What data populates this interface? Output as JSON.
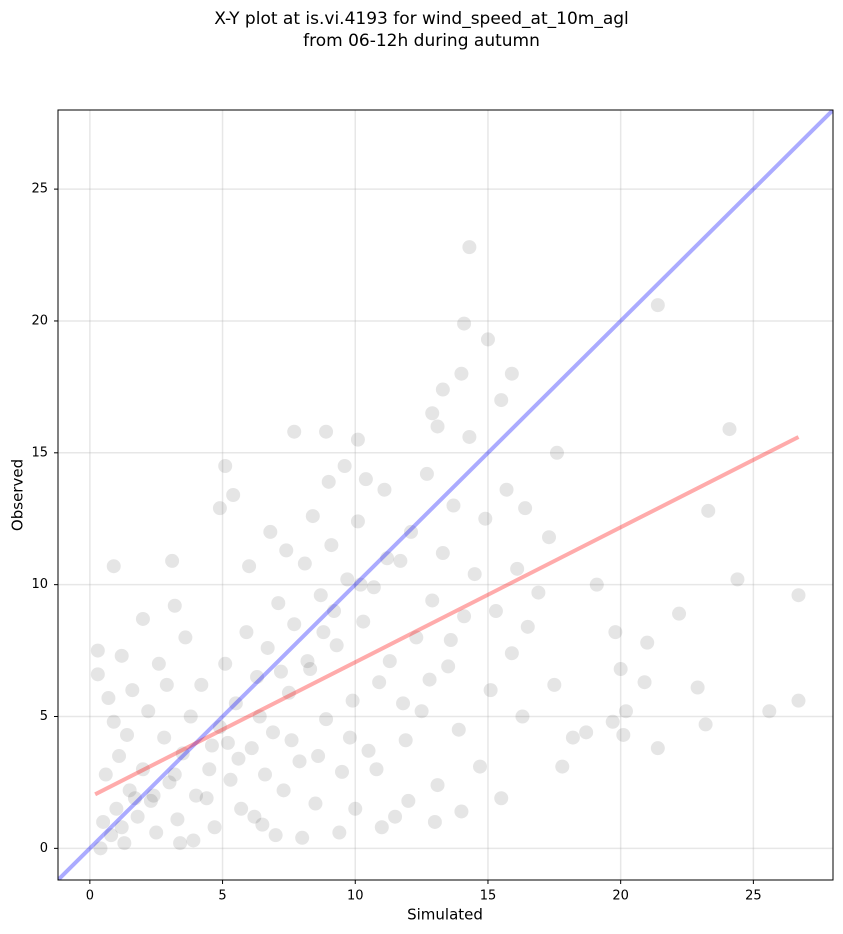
{
  "chart_data": {
    "type": "scatter",
    "title": "X-Y plot at is.vi.4193 for wind_speed_at_10m_agl\nfrom 06-12h during autumn",
    "x_label": "Simulated",
    "y_label": "Observed",
    "xlim": [
      -1.2,
      28
    ],
    "ylim": [
      -1.2,
      28
    ],
    "xticks": [
      0,
      5,
      10,
      15,
      20,
      25
    ],
    "yticks": [
      0,
      5,
      10,
      15,
      20,
      25
    ],
    "grid": true,
    "series": [
      {
        "color": "#000000",
        "x": [
          14.3,
          21.4,
          14.1,
          15.0,
          24.1,
          26.7,
          26.7,
          25.6,
          24.4,
          23.3,
          22.2,
          23.2,
          22.9,
          21.4,
          20.2,
          20.1,
          20.0,
          21.0,
          20.9,
          19.7,
          19.8,
          19.1,
          18.7,
          18.2,
          17.5,
          17.8,
          17.6,
          16.9,
          17.3,
          16.4,
          15.9,
          15.5,
          14.0,
          13.3,
          12.9,
          13.1,
          7.7,
          8.9,
          10.1,
          5.1,
          5.4,
          4.9,
          0.9,
          3.1,
          0.3,
          0.3,
          0.7,
          1.2,
          2.0,
          3.2,
          0.5,
          0.8,
          1.0,
          1.2,
          1.5,
          0.6,
          1.8,
          2.0,
          2.3,
          2.5,
          1.1,
          1.4,
          0.9,
          2.8,
          3.0,
          3.3,
          3.5,
          3.8,
          4.0,
          4.2,
          4.5,
          4.7,
          4.9,
          5.1,
          5.3,
          5.5,
          5.7,
          5.9,
          6.1,
          6.3,
          6.5,
          6.7,
          6.9,
          7.1,
          7.3,
          7.5,
          7.7,
          7.9,
          8.1,
          8.3,
          8.5,
          8.7,
          8.9,
          9.1,
          9.3,
          9.5,
          9.7,
          9.9,
          10.1,
          10.3,
          10.5,
          10.7,
          10.9,
          11.1,
          11.3,
          11.5,
          11.7,
          11.9,
          12.1,
          12.3,
          12.5,
          12.7,
          12.9,
          13.1,
          13.3,
          13.5,
          13.7,
          13.9,
          14.1,
          14.3,
          14.5,
          14.7,
          14.9,
          15.1,
          15.3,
          15.5,
          15.7,
          15.9,
          16.1,
          16.3,
          16.5,
          1.6,
          2.2,
          2.6,
          3.6,
          3.9,
          2.9,
          6.0,
          6.8,
          7.4,
          8.4,
          9.0,
          9.6,
          10.4,
          6.2,
          7.0,
          8.0,
          9.4,
          10.0,
          11.0,
          12.0,
          13.0,
          14.0,
          1.3,
          0.4,
          3.4,
          4.4,
          5.6,
          6.6,
          7.6,
          8.6,
          9.8,
          10.8,
          11.8,
          12.8,
          13.6,
          8.2,
          9.2,
          10.2,
          11.2,
          8.8,
          7.2,
          6.4,
          5.2,
          4.6,
          3.2,
          2.4,
          1.7
        ],
        "y": [
          22.8,
          20.6,
          19.9,
          19.3,
          15.9,
          9.6,
          5.6,
          5.2,
          10.2,
          12.8,
          8.9,
          4.7,
          6.1,
          3.8,
          5.2,
          4.3,
          6.8,
          7.8,
          6.3,
          4.8,
          8.2,
          10.0,
          4.4,
          4.2,
          6.2,
          3.1,
          15.0,
          9.7,
          11.8,
          12.9,
          18.0,
          17.0,
          18.0,
          17.4,
          16.5,
          16.0,
          15.8,
          15.8,
          15.5,
          14.5,
          13.4,
          12.9,
          10.7,
          10.9,
          7.5,
          6.6,
          5.7,
          7.3,
          8.7,
          9.2,
          1.0,
          0.5,
          1.5,
          0.8,
          2.2,
          2.8,
          1.2,
          3.0,
          1.8,
          0.6,
          3.5,
          4.3,
          4.8,
          4.2,
          2.5,
          1.1,
          3.6,
          5.0,
          2.0,
          6.2,
          3.0,
          0.8,
          4.6,
          7.0,
          2.6,
          5.5,
          1.5,
          8.2,
          3.8,
          6.5,
          0.9,
          7.6,
          4.4,
          9.3,
          2.2,
          5.9,
          8.5,
          3.3,
          10.8,
          6.8,
          1.7,
          9.6,
          4.9,
          11.5,
          7.7,
          2.9,
          10.2,
          5.6,
          12.4,
          8.6,
          3.7,
          9.9,
          6.3,
          13.6,
          7.1,
          1.2,
          10.9,
          4.1,
          12.0,
          8.0,
          5.2,
          14.2,
          9.4,
          2.4,
          11.2,
          6.9,
          13.0,
          4.5,
          8.8,
          15.6,
          10.4,
          3.1,
          12.5,
          6.0,
          9.0,
          1.9,
          13.6,
          7.4,
          10.6,
          5.0,
          8.4,
          6.0,
          5.2,
          7.0,
          8.0,
          0.3,
          6.2,
          10.7,
          12.0,
          11.3,
          12.6,
          13.9,
          14.5,
          14.0,
          1.2,
          0.5,
          0.4,
          0.6,
          1.5,
          0.8,
          1.8,
          1.0,
          1.4,
          0.2,
          0.0,
          0.2,
          1.9,
          3.4,
          2.8,
          4.1,
          3.5,
          4.2,
          3.0,
          5.5,
          6.4,
          7.9,
          7.1,
          9.0,
          10.0,
          11.0,
          8.2,
          6.7,
          5.0,
          4.0,
          3.9,
          2.8,
          2.0,
          1.9
        ]
      }
    ],
    "lines": [
      {
        "color": "#0000ff",
        "x": [
          -1.2,
          28
        ],
        "y": [
          -1.2,
          28
        ]
      },
      {
        "color": "#ff0000",
        "x": [
          0.2,
          26.7
        ],
        "y": [
          2.05,
          15.6
        ]
      }
    ]
  }
}
